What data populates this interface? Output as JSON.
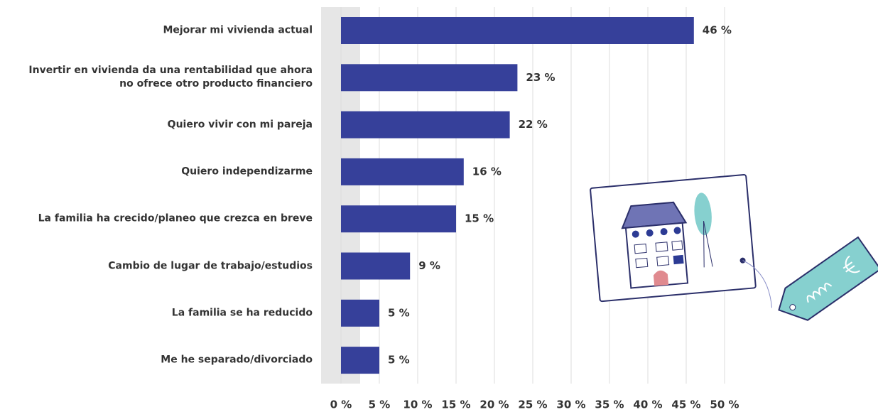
{
  "chart_data": {
    "type": "barh",
    "categories": [
      "Mejorar mi vivienda actual",
      "Invertir en vivienda da una rentabilidad que ahora\nno ofrece otro producto financiero",
      "Quiero vivir con mi pareja",
      "Quiero independizarme",
      "La familia ha crecido/planeo que crezca en breve",
      "Cambio de lugar de trabajo/estudios",
      "La familia se ha reducido",
      "Me he separado/divorciado"
    ],
    "values": [
      46,
      23,
      22,
      16,
      15,
      9,
      5,
      5
    ],
    "value_labels": [
      "46 %",
      "23 %",
      "22 %",
      "16 %",
      "15 %",
      "9 %",
      "5 %",
      "5 %"
    ],
    "color": "#36409a",
    "xlim": [
      0,
      50
    ],
    "xticks": [
      {
        "value": 0,
        "label": "0 %"
      },
      {
        "value": 5,
        "label": "5 %"
      },
      {
        "value": 10,
        "label": "10 %"
      },
      {
        "value": 15,
        "label": "15 %"
      },
      {
        "value": 20,
        "label": "20 %"
      },
      {
        "value": 25,
        "label": "25 %"
      },
      {
        "value": 30,
        "label": "30 %"
      },
      {
        "value": 35,
        "label": "35 %"
      },
      {
        "value": 40,
        "label": "40 %"
      },
      {
        "value": 45,
        "label": "45 %"
      },
      {
        "value": 50,
        "label": "50 %"
      }
    ],
    "grid": true
  }
}
